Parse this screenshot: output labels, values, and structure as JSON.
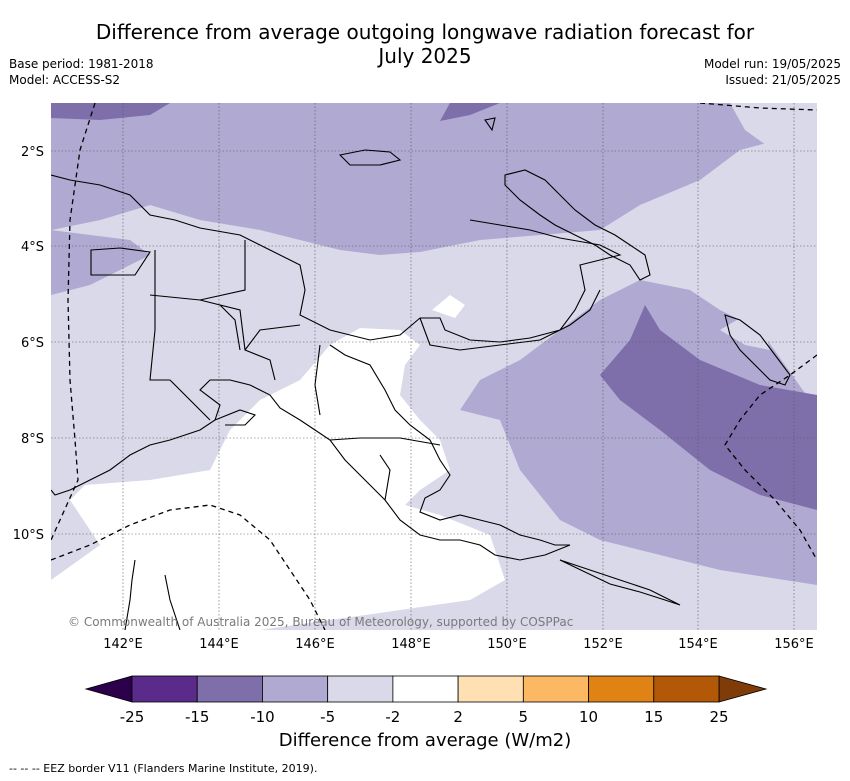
{
  "header": {
    "title_line1": "Difference from average outgoing longwave radiation forecast for",
    "title_line2": "July 2025",
    "base_period": "Base period: 1981-2018",
    "model": "Model: ACCESS-S2",
    "model_run": "Model run: 19/05/2025",
    "issued": "Issued: 21/05/2025"
  },
  "map": {
    "lat_labels": [
      "2°S",
      "4°S",
      "6°S",
      "8°S",
      "10°S"
    ],
    "lon_labels": [
      "142°E",
      "144°E",
      "146°E",
      "148°E",
      "150°E",
      "152°E",
      "154°E",
      "156°E"
    ],
    "copyright": "© Commonwealth of Australia 2025, Bureau of Meteorology, supported by COSPPac"
  },
  "colorbar": {
    "ticks": [
      "-25",
      "-15",
      "-10",
      "-5",
      "-2",
      "2",
      "5",
      "10",
      "15",
      "25"
    ],
    "colors": [
      "#5a2b8a",
      "#7e6fab",
      "#b0a9d2",
      "#d9d9ea",
      "#ffffff",
      "#ffe0b3",
      "#fdb863",
      "#e08214",
      "#b35806"
    ],
    "under_color": "#2d004b",
    "over_color": "#7f3b08",
    "title": "Difference from average (W/m2)"
  },
  "footnote": "--  --  -- EEZ border V11 (Flanders Marine Institute, 2019)."
}
